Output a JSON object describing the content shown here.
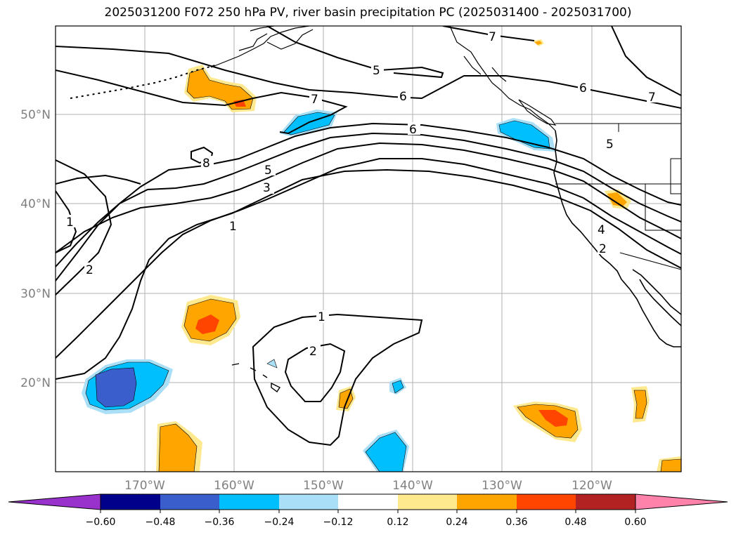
{
  "title": "2025031200 F072 250 hPa PV, river basin precipitation PC (2025031400 - 2025031700)",
  "map": {
    "lat_labels": [
      "50°N",
      "40°N",
      "30°N",
      "20°N"
    ],
    "lon_labels": [
      "170°W",
      "160°W",
      "150°W",
      "140°W",
      "130°W",
      "120°W"
    ],
    "pv_contour_labels": [
      "7",
      "5",
      "6",
      "6",
      "7",
      "7",
      "6",
      "5",
      "5",
      "3",
      "8",
      "1",
      "4",
      "2",
      "1",
      "2",
      "1",
      "2"
    ],
    "colors": {
      "coast": "#000000",
      "grid": "#b0b0b0",
      "pos_012": "#ffe98f",
      "pos_024": "#ffa500",
      "pos_036": "#ff4500",
      "pos_048": "#b22222",
      "pos_060": "#ff82ab",
      "neg_012": "#a9dff7",
      "neg_024": "#00bfff",
      "neg_036": "#3a5fcd",
      "neg_048": "#00008b",
      "neg_060": "#9932cc"
    }
  },
  "colorbar": {
    "ticks": [
      "−0.60",
      "−0.48",
      "−0.36",
      "−0.24",
      "−0.12",
      "0.12",
      "0.24",
      "0.36",
      "0.48",
      "0.60"
    ],
    "colors": [
      "#9932cc",
      "#00008b",
      "#3a5fcd",
      "#3a5fcd",
      "#00bfff",
      "#a9dff7",
      "#ffffff",
      "#ffe98f",
      "#ffa500",
      "#ff4500",
      "#b22222",
      "#ff82ab"
    ]
  }
}
